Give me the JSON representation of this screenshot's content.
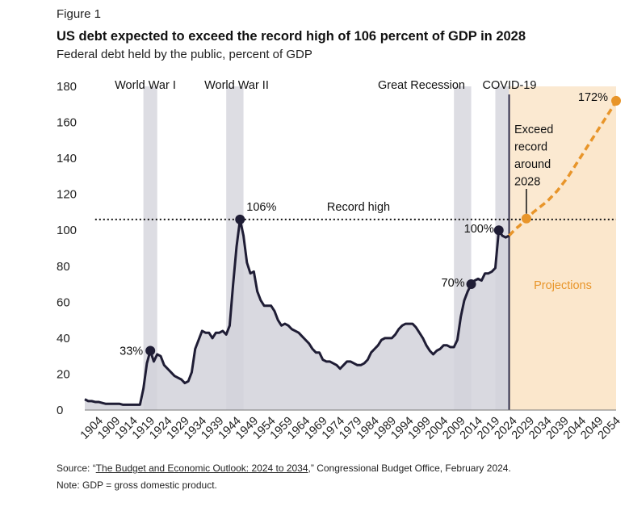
{
  "figure_label": "Figure 1",
  "source": {
    "prefix": "Source: “",
    "link_text": "The Budget and Economic Outlook: 2024 to 2034",
    "suffix": ",” Congressional Budget Office, February 2024."
  },
  "note": "Note: GDP = gross domestic product.",
  "colors": {
    "historical_fill": "#d2d2da",
    "historical_line": "#1f1d35",
    "projection_fill": "#fbe7cc",
    "projection_line": "#e8952a",
    "band": "#dddde3",
    "record_line": "#111111",
    "divider": "#2e2c4a",
    "projections_label": "#e8952a"
  },
  "chart_data": {
    "type": "area",
    "title": "US debt expected to exceed the record high of 106 percent of GDP in 2028",
    "subtitle": "Federal debt held by the public, percent of GDP",
    "xlim": [
      1900,
      2054
    ],
    "ylim": [
      0,
      180
    ],
    "yticks": [
      0,
      20,
      40,
      60,
      80,
      100,
      120,
      140,
      160,
      180
    ],
    "xticks": [
      1904,
      1909,
      1914,
      1919,
      1924,
      1929,
      1934,
      1939,
      1944,
      1949,
      1954,
      1959,
      1964,
      1969,
      1974,
      1979,
      1984,
      1989,
      1994,
      1999,
      2004,
      2009,
      2014,
      2019,
      2024,
      2029,
      2034,
      2039,
      2044,
      2049,
      2054
    ],
    "grid": false,
    "series": [
      {
        "x": [
          1900,
          1901,
          1902,
          1903,
          1904,
          1905,
          1906,
          1907,
          1908,
          1909,
          1910,
          1911,
          1912,
          1913,
          1914,
          1915,
          1916,
          1917,
          1918,
          1919,
          1920,
          1921,
          1922,
          1923,
          1924,
          1925,
          1926,
          1927,
          1928,
          1929,
          1930,
          1931,
          1932,
          1933,
          1934,
          1935,
          1936,
          1937,
          1938,
          1939,
          1940,
          1941,
          1942,
          1943,
          1944,
          1945,
          1946,
          1947,
          1948,
          1949,
          1950,
          1951,
          1952,
          1953,
          1954,
          1955,
          1956,
          1957,
          1958,
          1959,
          1960,
          1961,
          1962,
          1963,
          1964,
          1965,
          1966,
          1967,
          1968,
          1969,
          1970,
          1971,
          1972,
          1973,
          1974,
          1975,
          1976,
          1977,
          1978,
          1979,
          1980,
          1981,
          1982,
          1983,
          1984,
          1985,
          1986,
          1987,
          1988,
          1989,
          1990,
          1991,
          1992,
          1993,
          1994,
          1995,
          1996,
          1997,
          1998,
          1999,
          2000,
          2001,
          2002,
          2003,
          2004,
          2005,
          2006,
          2007,
          2008,
          2009,
          2010,
          2011,
          2012,
          2013,
          2014,
          2015,
          2016,
          2017,
          2018,
          2019,
          2020,
          2021,
          2022,
          2023
        ],
        "values": [
          6,
          5,
          5,
          4.5,
          4.5,
          4,
          3.5,
          3.5,
          3.5,
          3.5,
          3.5,
          3,
          3,
          3,
          3,
          3,
          3,
          12,
          26,
          33,
          27,
          31,
          30,
          25,
          23,
          21,
          19,
          18,
          17,
          15,
          16,
          21,
          34,
          39,
          44,
          43,
          43,
          40,
          43,
          43,
          44,
          42,
          47,
          70,
          91,
          106,
          97,
          82,
          76,
          77,
          66,
          61,
          58,
          58,
          58,
          55,
          50,
          47,
          48,
          47,
          45,
          44,
          43,
          41,
          39,
          37,
          34,
          32,
          32,
          28,
          27,
          27,
          26,
          25,
          23,
          25,
          27,
          27,
          26,
          25,
          25,
          26,
          28,
          32,
          34,
          36,
          39,
          40,
          40,
          40,
          42,
          45,
          47,
          48,
          48,
          48,
          46,
          43,
          40,
          36,
          33,
          31,
          33,
          34,
          36,
          36,
          35,
          35,
          39,
          52,
          61,
          66,
          70,
          72,
          73,
          72,
          76,
          76,
          77,
          79,
          100,
          97,
          96,
          97
        ]
      },
      {
        "x": [
          2024,
          2025,
          2026,
          2027,
          2028,
          2029,
          2030,
          2031,
          2032,
          2033,
          2034,
          2035,
          2036,
          2037,
          2038,
          2039,
          2040,
          2041,
          2042,
          2043,
          2044,
          2045,
          2046,
          2047,
          2048,
          2049,
          2050,
          2051,
          2052,
          2053,
          2054
        ],
        "values": [
          99,
          101,
          102.5,
          104.5,
          106.5,
          108,
          110,
          111.5,
          113,
          114.5,
          116,
          118,
          120,
          122,
          124.5,
          127,
          129.5,
          132.5,
          135.5,
          138.5,
          141.5,
          144.5,
          147.5,
          150.5,
          153.5,
          156.5,
          159.5,
          162.5,
          165.5,
          168.5,
          172
        ]
      }
    ],
    "shaded_periods": [
      {
        "label": "World War I",
        "from": 1917,
        "to": 1921
      },
      {
        "label": "World War II",
        "from": 1941,
        "to": 1946
      },
      {
        "label": "Great Recession",
        "from": 2007,
        "to": 2012
      },
      {
        "label": "COVID-19",
        "from": 2019,
        "to": 2023
      }
    ],
    "reference_line": {
      "value": 106,
      "label": "Record high",
      "from": 1903,
      "to": 2054
    },
    "projection_start": 2024,
    "projection_label": "Projections",
    "callouts": [
      {
        "x": 1919,
        "y": 33,
        "label": "33%"
      },
      {
        "x": 1945,
        "y": 106,
        "label": "106%"
      },
      {
        "x": 2012,
        "y": 70,
        "label": "70%"
      },
      {
        "x": 2020,
        "y": 100,
        "label": "100%"
      },
      {
        "x": 2028,
        "y": 106.5,
        "label": "",
        "projected": true
      },
      {
        "x": 2054,
        "y": 172,
        "label": "172%",
        "projected": true
      }
    ],
    "annotation": {
      "lines": [
        "Exceed",
        "record",
        "around",
        "2028"
      ],
      "x": 2028
    }
  }
}
